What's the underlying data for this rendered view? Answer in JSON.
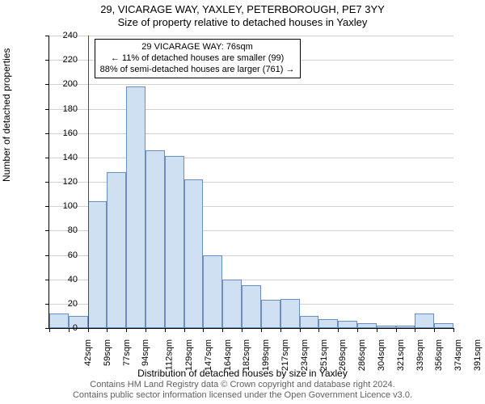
{
  "title_main": "29, VICARAGE WAY, YAXLEY, PETERBOROUGH, PE7 3YY",
  "title_sub": "Size of property relative to detached houses in Yaxley",
  "y_axis_label": "Number of detached properties",
  "x_axis_label": "Distribution of detached houses by size in Yaxley",
  "chart": {
    "type": "histogram",
    "ylim": [
      0,
      240
    ],
    "ytick_step": 20,
    "background_color": "#ffffff",
    "grid_color": "#d0d0d0",
    "axis_color": "#000000",
    "bar_fill": "#cfe0f3",
    "bar_border": "#6a8fbf",
    "reference_line_color": "#b22222",
    "categories": [
      "42sqm",
      "59sqm",
      "77sqm",
      "94sqm",
      "112sqm",
      "129sqm",
      "147sqm",
      "164sqm",
      "182sqm",
      "199sqm",
      "217sqm",
      "234sqm",
      "251sqm",
      "269sqm",
      "286sqm",
      "304sqm",
      "321sqm",
      "339sqm",
      "356sqm",
      "374sqm",
      "391sqm"
    ],
    "values": [
      12,
      10,
      104,
      128,
      198,
      146,
      141,
      122,
      60,
      40,
      35,
      23,
      24,
      10,
      7,
      6,
      4,
      2,
      2,
      12,
      4
    ],
    "reference_index": 2,
    "info_box": {
      "line1": "29 VICARAGE WAY: 76sqm",
      "line2": "← 11% of detached houses are smaller (99)",
      "line3": "88% of semi-detached houses are larger (761) →"
    }
  },
  "credits": {
    "line1": "Contains HM Land Registry data © Crown copyright and database right 2024.",
    "line2": "Contains public sector information licensed under the Open Government Licence v3.0."
  },
  "fontsize": {
    "title": 13,
    "axis_label": 12,
    "tick": 11,
    "info_box": 11,
    "credits": 11
  }
}
